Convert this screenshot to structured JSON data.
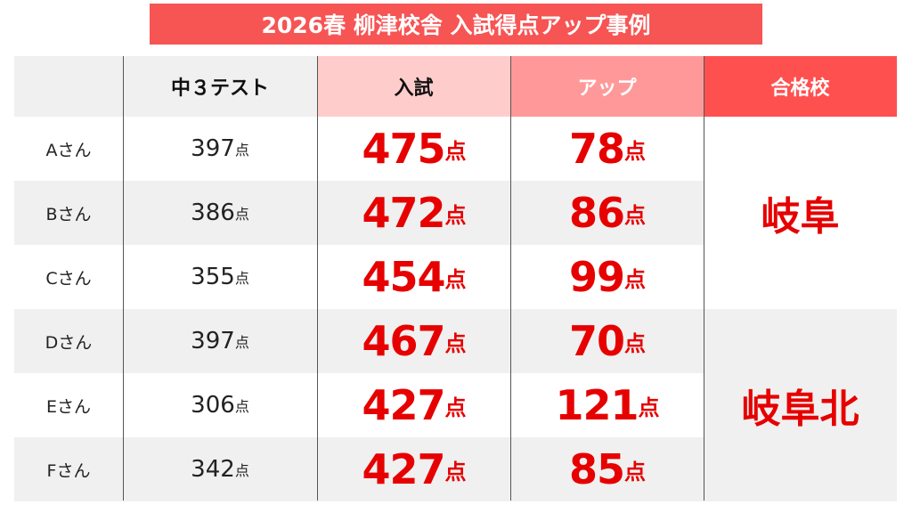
{
  "title": "2026春  柳津校舎  入試得点アップ事例",
  "unit": "点",
  "headers": [
    "",
    "中３テスト",
    "入試",
    "アップ",
    "合格校"
  ],
  "header_colors": [
    "#f0f0f0",
    "#f0f0f0",
    "#ffcccc",
    "#ff9999",
    "#ff5050"
  ],
  "accent_color": "#e60000",
  "rows": [
    {
      "name": "Aさん",
      "test": "397",
      "exam": "475",
      "up": "78"
    },
    {
      "name": "Bさん",
      "test": "386",
      "exam": "472",
      "up": "86"
    },
    {
      "name": "Cさん",
      "test": "355",
      "exam": "454",
      "up": "99"
    },
    {
      "name": "Dさん",
      "test": "397",
      "exam": "467",
      "up": "70"
    },
    {
      "name": "Eさん",
      "test": "306",
      "exam": "427",
      "up": "121"
    },
    {
      "name": "Fさん",
      "test": "342",
      "exam": "427",
      "up": "85"
    }
  ],
  "schools": [
    {
      "name": "岐阜",
      "rows": "A-C"
    },
    {
      "name": "岐阜北",
      "rows": "D-F"
    }
  ]
}
